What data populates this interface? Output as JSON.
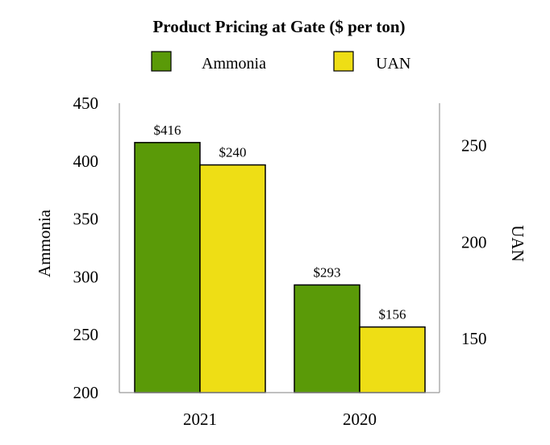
{
  "chart_data": {
    "type": "bar",
    "title": "Product Pricing at Gate ($ per ton)",
    "categories": [
      "2021",
      "2020"
    ],
    "series": [
      {
        "name": "Ammonia",
        "axis": "left",
        "color": "#5a9a08",
        "values": [
          416,
          293
        ],
        "labels": [
          "$416",
          "$293"
        ]
      },
      {
        "name": "UAN",
        "axis": "right",
        "color": "#eede15",
        "values": [
          240,
          156
        ],
        "labels": [
          "$240",
          "$156"
        ]
      }
    ],
    "left_axis": {
      "label": "Ammonia",
      "min": 200,
      "max": 450,
      "ticks": [
        200,
        250,
        300,
        350,
        400,
        450
      ]
    },
    "right_axis": {
      "label": "UAN",
      "min": 122,
      "max": 272,
      "ticks": [
        150,
        200,
        250
      ]
    },
    "legend_position": "top-center",
    "grid": false
  }
}
